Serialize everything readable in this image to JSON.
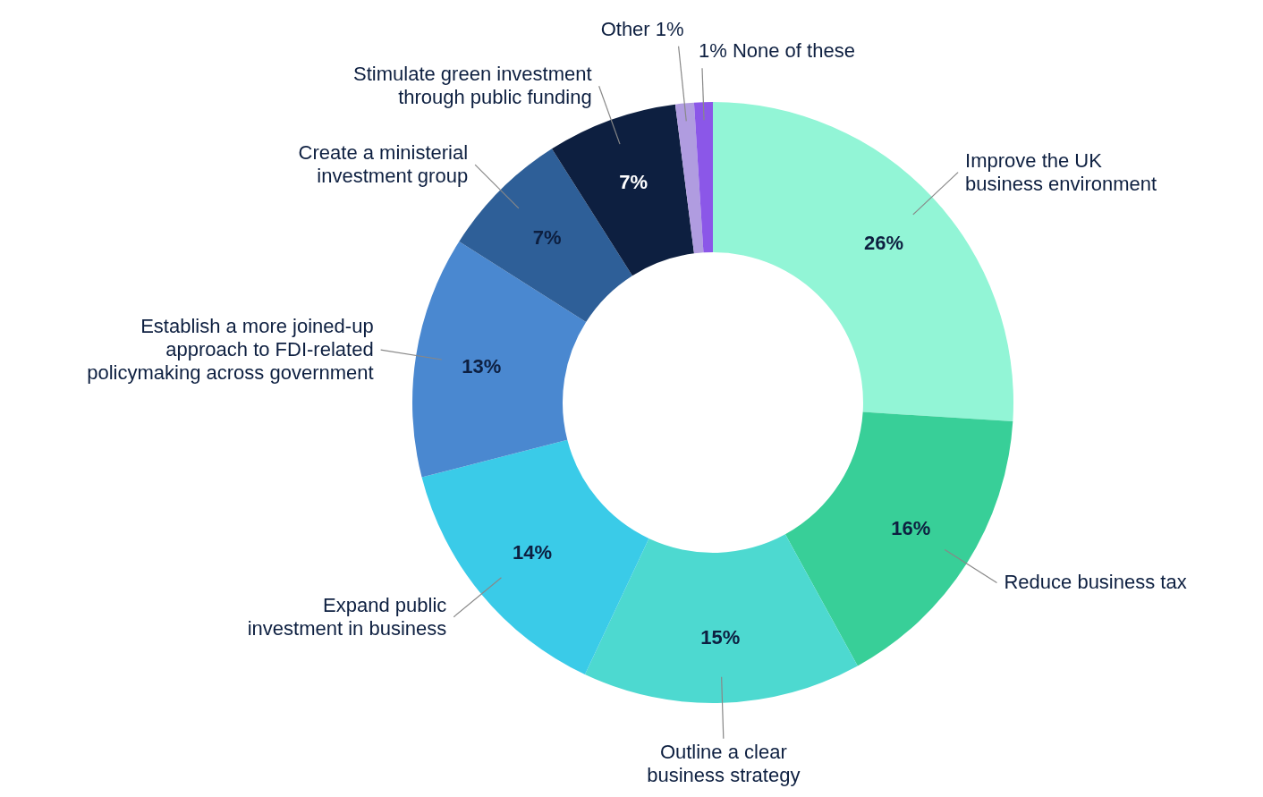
{
  "chart_data": {
    "type": "donut",
    "categories": [
      "Improve the UK\nbusiness environment",
      "Reduce business tax",
      "Outline a clear\nbusiness strategy",
      "Expand public\ninvestment in business",
      "Establish a more joined-up\napproach to FDI-related\npolicymaking across government",
      "Create a ministerial\ninvestment group",
      "Stimulate green investment\nthrough public funding",
      "Other",
      "None of these"
    ],
    "values": [
      26,
      16,
      15,
      14,
      13,
      7,
      7,
      1,
      1
    ],
    "value_labels": [
      "26%",
      "16%",
      "15%",
      "14%",
      "13%",
      "7%",
      "7%",
      "1%",
      "1%"
    ],
    "colors": [
      "#92f5d6",
      "#38cf98",
      "#4dd9d0",
      "#3acbe8",
      "#4a88d0",
      "#2e5f98",
      "#0d1f40",
      "#b09ce0",
      "#8b57e8"
    ]
  }
}
